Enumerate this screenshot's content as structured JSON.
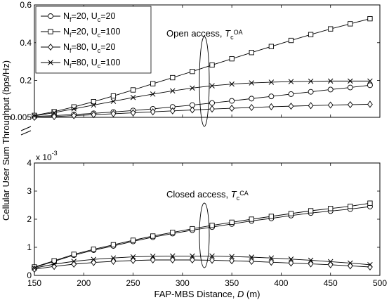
{
  "chart_data": {
    "type": "line",
    "xlabel": "FAP-MBS Distance, D (m)",
    "ylabel": "Cellular User Sum Throughput (bps/Hz)",
    "x": [
      150,
      170,
      190,
      210,
      230,
      250,
      270,
      290,
      310,
      330,
      350,
      370,
      390,
      410,
      430,
      450,
      470,
      490
    ],
    "legend": {
      "placement": "top-left",
      "entries": [
        {
          "main": "N",
          "sub1": "f",
          "mid": "=20, U",
          "sub2": "c",
          "end": "=20",
          "marker": "circle"
        },
        {
          "main": "N",
          "sub1": "f",
          "mid": "=20, U",
          "sub2": "c",
          "end": "=100",
          "marker": "square"
        },
        {
          "main": "N",
          "sub1": "f",
          "mid": "=80, U",
          "sub2": "c",
          "end": "=20",
          "marker": "diamond"
        },
        {
          "main": "N",
          "sub1": "f",
          "mid": "=80, U",
          "sub2": "c",
          "end": "=100",
          "marker": "x"
        }
      ]
    },
    "panels": [
      {
        "id": "top",
        "ylim": [
          0.005,
          0.6
        ],
        "yticks": [
          "0.005",
          "0.2",
          "0.4",
          "0.6"
        ],
        "yticks_values": [
          0.005,
          0.2,
          0.4,
          0.6
        ],
        "annotation": {
          "text": "Open access, ",
          "sym": "T",
          "sub": "c",
          "sup": "OA"
        },
        "series": [
          {
            "marker": "circle",
            "values": [
              0.01,
              0.014,
              0.02,
              0.026,
              0.033,
              0.041,
              0.05,
              0.06,
              0.07,
              0.081,
              0.092,
              0.104,
              0.116,
              0.128,
              0.14,
              0.152,
              0.163,
              0.175
            ]
          },
          {
            "marker": "square",
            "values": [
              0.015,
              0.035,
              0.06,
              0.088,
              0.118,
              0.15,
              0.183,
              0.215,
              0.248,
              0.282,
              0.315,
              0.348,
              0.38,
              0.412,
              0.443,
              0.473,
              0.5,
              0.527
            ]
          },
          {
            "marker": "diamond",
            "values": [
              0.005,
              0.009,
              0.014,
              0.019,
              0.024,
              0.029,
              0.034,
              0.039,
              0.044,
              0.049,
              0.053,
              0.057,
              0.061,
              0.064,
              0.067,
              0.07,
              0.072,
              0.074
            ]
          },
          {
            "marker": "x",
            "values": [
              0.012,
              0.03,
              0.05,
              0.07,
              0.09,
              0.11,
              0.128,
              0.145,
              0.16,
              0.172,
              0.181,
              0.187,
              0.191,
              0.194,
              0.196,
              0.197,
              0.197,
              0.197
            ]
          }
        ]
      },
      {
        "id": "bottom",
        "ylim": [
          0,
          4
        ],
        "yticks": [
          "0",
          "1",
          "2",
          "3",
          "4"
        ],
        "yticks_values": [
          0,
          1,
          2,
          3,
          4
        ],
        "exponent": "x 10",
        "exponent_sup": "-3",
        "annotation": {
          "text": "Closed access, ",
          "sym": "T",
          "sub": "c",
          "sup": "CA"
        },
        "series": [
          {
            "marker": "circle",
            "values": [
              0.28,
              0.5,
              0.72,
              0.9,
              1.05,
              1.21,
              1.36,
              1.49,
              1.61,
              1.72,
              1.83,
              1.94,
              2.03,
              2.13,
              2.22,
              2.29,
              2.36,
              2.45
            ]
          },
          {
            "marker": "square",
            "values": [
              0.3,
              0.52,
              0.75,
              0.93,
              1.09,
              1.25,
              1.4,
              1.53,
              1.66,
              1.78,
              1.89,
              2.0,
              2.1,
              2.2,
              2.3,
              2.38,
              2.46,
              2.57
            ]
          },
          {
            "marker": "diamond",
            "values": [
              0.22,
              0.32,
              0.4,
              0.46,
              0.5,
              0.53,
              0.55,
              0.55,
              0.55,
              0.54,
              0.52,
              0.5,
              0.47,
              0.44,
              0.41,
              0.38,
              0.34,
              0.3
            ]
          },
          {
            "marker": "x",
            "values": [
              0.26,
              0.4,
              0.5,
              0.57,
              0.62,
              0.66,
              0.68,
              0.69,
              0.69,
              0.69,
              0.67,
              0.65,
              0.62,
              0.58,
              0.54,
              0.49,
              0.44,
              0.38
            ]
          }
        ]
      }
    ],
    "xticks": [
      "150",
      "200",
      "250",
      "300",
      "350",
      "400",
      "450",
      "500"
    ],
    "xticks_values": [
      150,
      200,
      250,
      300,
      350,
      400,
      450,
      500
    ],
    "xlim": [
      150,
      500
    ]
  }
}
